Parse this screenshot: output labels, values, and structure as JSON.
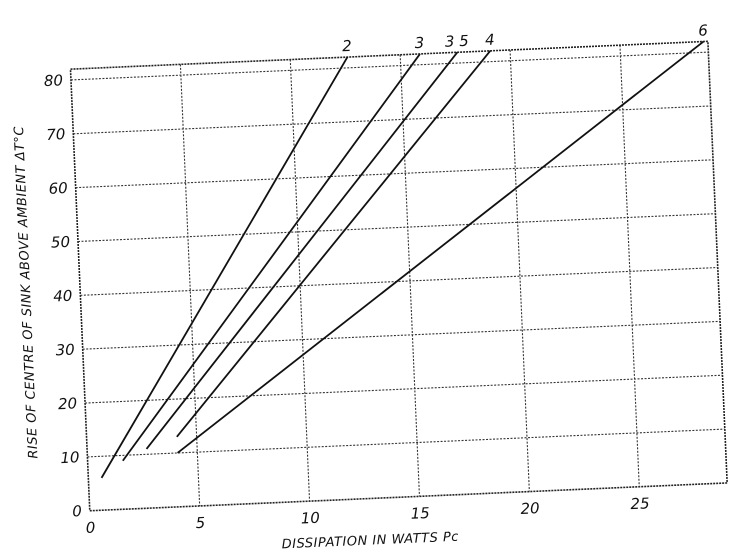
{
  "chart_data": {
    "type": "line",
    "title": "",
    "xlabel": "DISSIPATION IN WATTS Pc",
    "ylabel": "RISE OF CENTRE OF SINK ABOVE AMBIENT ΔT°C",
    "xlim": [
      0,
      29
    ],
    "ylim": [
      0,
      82
    ],
    "xticks": [
      0,
      5,
      10,
      15,
      20,
      25
    ],
    "yticks": [
      0,
      10,
      20,
      30,
      40,
      50,
      60,
      70,
      80
    ],
    "xtick_labels": [
      "0",
      "5",
      "10",
      "15",
      "20",
      "25"
    ],
    "ytick_labels": [
      "0",
      "10",
      "20",
      "30",
      "40",
      "50",
      "60",
      "70",
      "80"
    ],
    "grid": true,
    "legend": "none (series labelled at line ends)",
    "series": [
      {
        "name": "2",
        "x": [
          0.6,
          12.6
        ],
        "y": [
          6,
          82
        ],
        "color": "#111111"
      },
      {
        "name": "3",
        "x": [
          1.6,
          15.9
        ],
        "y": [
          9,
          82
        ],
        "color": "#111111"
      },
      {
        "name": "3 5",
        "x": [
          2.7,
          17.6
        ],
        "y": [
          11,
          82
        ],
        "color": "#111111"
      },
      {
        "name": "4",
        "x": [
          4.1,
          19.1
        ],
        "y": [
          13,
          82
        ],
        "color": "#111111"
      },
      {
        "name": "6",
        "x": [
          4.1,
          28.8
        ],
        "y": [
          10,
          82
        ],
        "color": "#111111"
      }
    ]
  }
}
